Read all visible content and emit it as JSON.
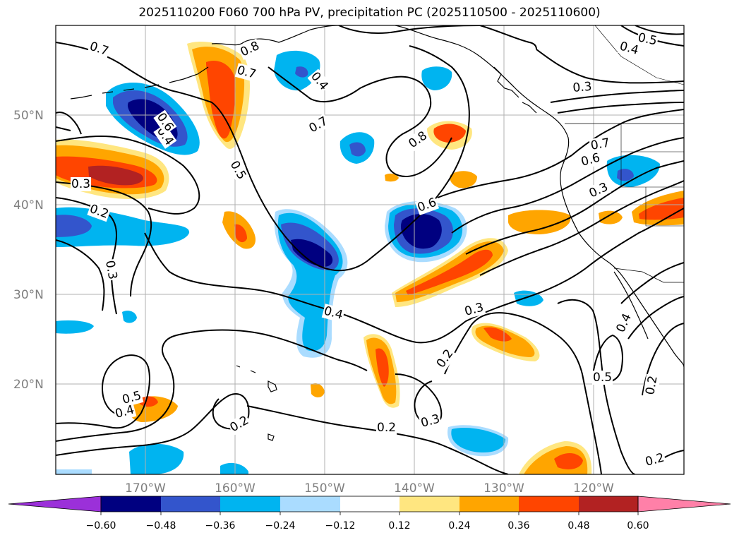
{
  "title": "2025110200 F060 700 hPa PV, precipitation PC (2025110500 - 2025110600)",
  "latitude_ticks": [
    "50°N",
    "40°N",
    "30°N",
    "20°N"
  ],
  "longitude_ticks": [
    "170°W",
    "160°W",
    "150°W",
    "140°W",
    "130°W",
    "120°W"
  ],
  "colorbar": {
    "levels": [
      "−0.60",
      "−0.48",
      "−0.36",
      "−0.24",
      "−0.12",
      "0.12",
      "0.24",
      "0.36",
      "0.48",
      "0.60"
    ],
    "colors": [
      "#9b30d9",
      "#000080",
      "#3355cc",
      "#00b4f0",
      "#aadcff",
      "#ffffff",
      "#ffe680",
      "#ffa500",
      "#ff4500",
      "#b22222",
      "#ff80a8"
    ]
  },
  "contour_labels": [
    "0.7",
    "0.8",
    "0.7",
    "0.4",
    "0.5",
    "0.4",
    "0.3",
    "0.6",
    "0.5",
    "0.3",
    "0.2",
    "0.3",
    "0.7",
    "0.8",
    "0.6",
    "0.4",
    "0.3",
    "0.2",
    "0.3",
    "0.7",
    "0.6",
    "0.3",
    "0.5",
    "0.4",
    "0.2",
    "0.2",
    "0.5",
    "0.4",
    "0.2",
    "0.2",
    "0.4"
  ],
  "colors": {
    "coast": "#000000",
    "grid": "#b0b0b0"
  }
}
